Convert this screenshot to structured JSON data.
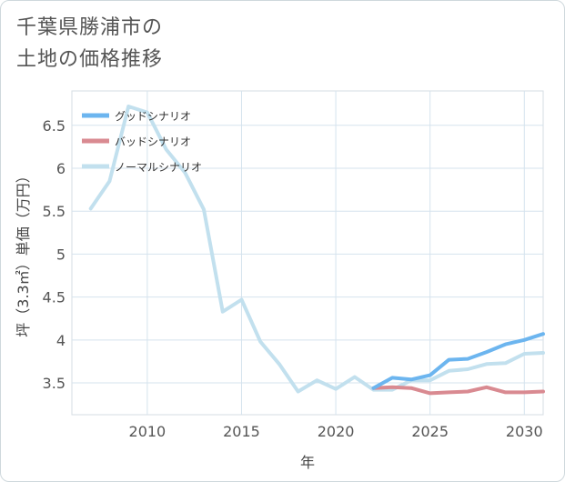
{
  "page": {
    "title_line1": "千葉県勝浦市の",
    "title_line2": "土地の価格推移"
  },
  "chart_data": {
    "type": "line",
    "xlabel": "年",
    "ylabel": "坪（3.3㎡）単価（万円）",
    "xlim": [
      2006,
      2031
    ],
    "ylim": [
      3.13,
      6.9
    ],
    "xticks": [
      2010,
      2015,
      2020,
      2025,
      2030
    ],
    "yticks": [
      3.5,
      4,
      4.5,
      5,
      5.5,
      6,
      6.5
    ],
    "grid": true,
    "legend_position": "top-left",
    "series": [
      {
        "name": "グッドシナリオ",
        "color": "#6cb5ef",
        "x": [
          2022,
          2023,
          2024,
          2025,
          2026,
          2027,
          2028,
          2029,
          2030,
          2031
        ],
        "y": [
          3.44,
          3.56,
          3.54,
          3.59,
          3.77,
          3.78,
          3.86,
          3.95,
          4.0,
          4.07
        ]
      },
      {
        "name": "バッドシナリオ",
        "color": "#d98a91",
        "x": [
          2022,
          2023,
          2024,
          2025,
          2026,
          2027,
          2028,
          2029,
          2030,
          2031
        ],
        "y": [
          3.44,
          3.45,
          3.44,
          3.38,
          3.39,
          3.4,
          3.45,
          3.39,
          3.39,
          3.4
        ]
      },
      {
        "name": "ノーマルシナリオ",
        "color": "#c2e0ee",
        "x": [
          2007,
          2008,
          2009,
          2010,
          2011,
          2012,
          2013,
          2014,
          2015,
          2016,
          2017,
          2018,
          2019,
          2020,
          2021,
          2022,
          2023,
          2024,
          2025,
          2026,
          2027,
          2028,
          2029,
          2030,
          2031
        ],
        "y": [
          5.53,
          5.85,
          6.72,
          6.65,
          6.22,
          5.95,
          5.52,
          4.33,
          4.47,
          3.98,
          3.72,
          3.4,
          3.53,
          3.43,
          3.57,
          3.42,
          3.42,
          3.53,
          3.53,
          3.64,
          3.66,
          3.72,
          3.73,
          3.84,
          3.85
        ]
      }
    ]
  }
}
